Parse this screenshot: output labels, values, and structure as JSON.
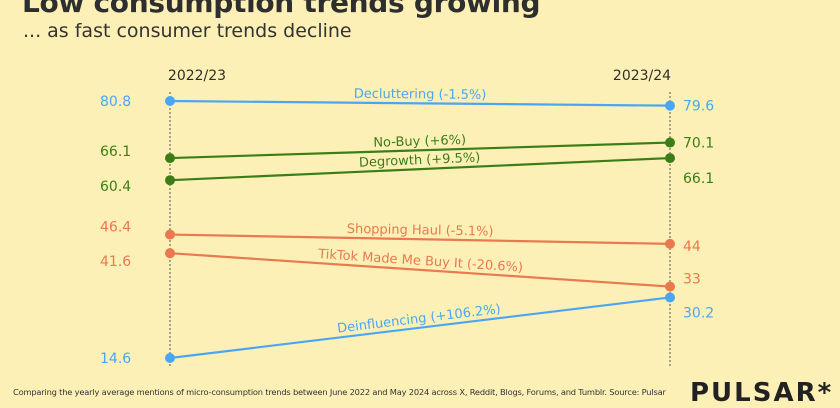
{
  "header": {
    "title": "Low consumption trends growing",
    "subtitle": "... as fast consumer trends decline"
  },
  "footer": {
    "note": "Comparing the yearly average mentions of micro-consumption trends between June 2022 and May 2024 across X, Reddit, Blogs, Forums, and Tumblr. Source: Pulsar",
    "logo": "PULSAR*"
  },
  "chart_data": {
    "type": "line",
    "subtype": "slope",
    "title": "Low consumption trends growing",
    "subtitle": "... as fast consumer trends decline",
    "x": [
      "2022/23",
      "2023/24"
    ],
    "ylim": [
      14.6,
      80.8
    ],
    "grid": false,
    "series": [
      {
        "name": "Decluttering (-1.5%)",
        "values": [
          80.8,
          79.6
        ],
        "value_labels": [
          "80.8",
          "79.6"
        ],
        "color": "#4aa6f4"
      },
      {
        "name": "No-Buy (+6%)",
        "values": [
          66.1,
          70.1
        ],
        "value_labels": [
          "66.1",
          "70.1"
        ],
        "color": "#3b7d16"
      },
      {
        "name": "Degrowth (+9.5%)",
        "values": [
          60.4,
          66.1
        ],
        "value_labels": [
          "60.4",
          "66.1"
        ],
        "color": "#3b7d16"
      },
      {
        "name": "Shopping Haul (-5.1%)",
        "values": [
          46.4,
          44
        ],
        "value_labels": [
          "46.4",
          "44"
        ],
        "color": "#e9794f"
      },
      {
        "name": "TikTok Made Me Buy It (-20.6%)",
        "values": [
          41.6,
          33
        ],
        "value_labels": [
          "41.6",
          "33"
        ],
        "color": "#e9794f"
      },
      {
        "name": "Deinfluencing (+106.2%)",
        "values": [
          14.6,
          30.2
        ],
        "value_labels": [
          "14.6",
          "30.2"
        ],
        "color": "#4aa6f4"
      }
    ]
  }
}
